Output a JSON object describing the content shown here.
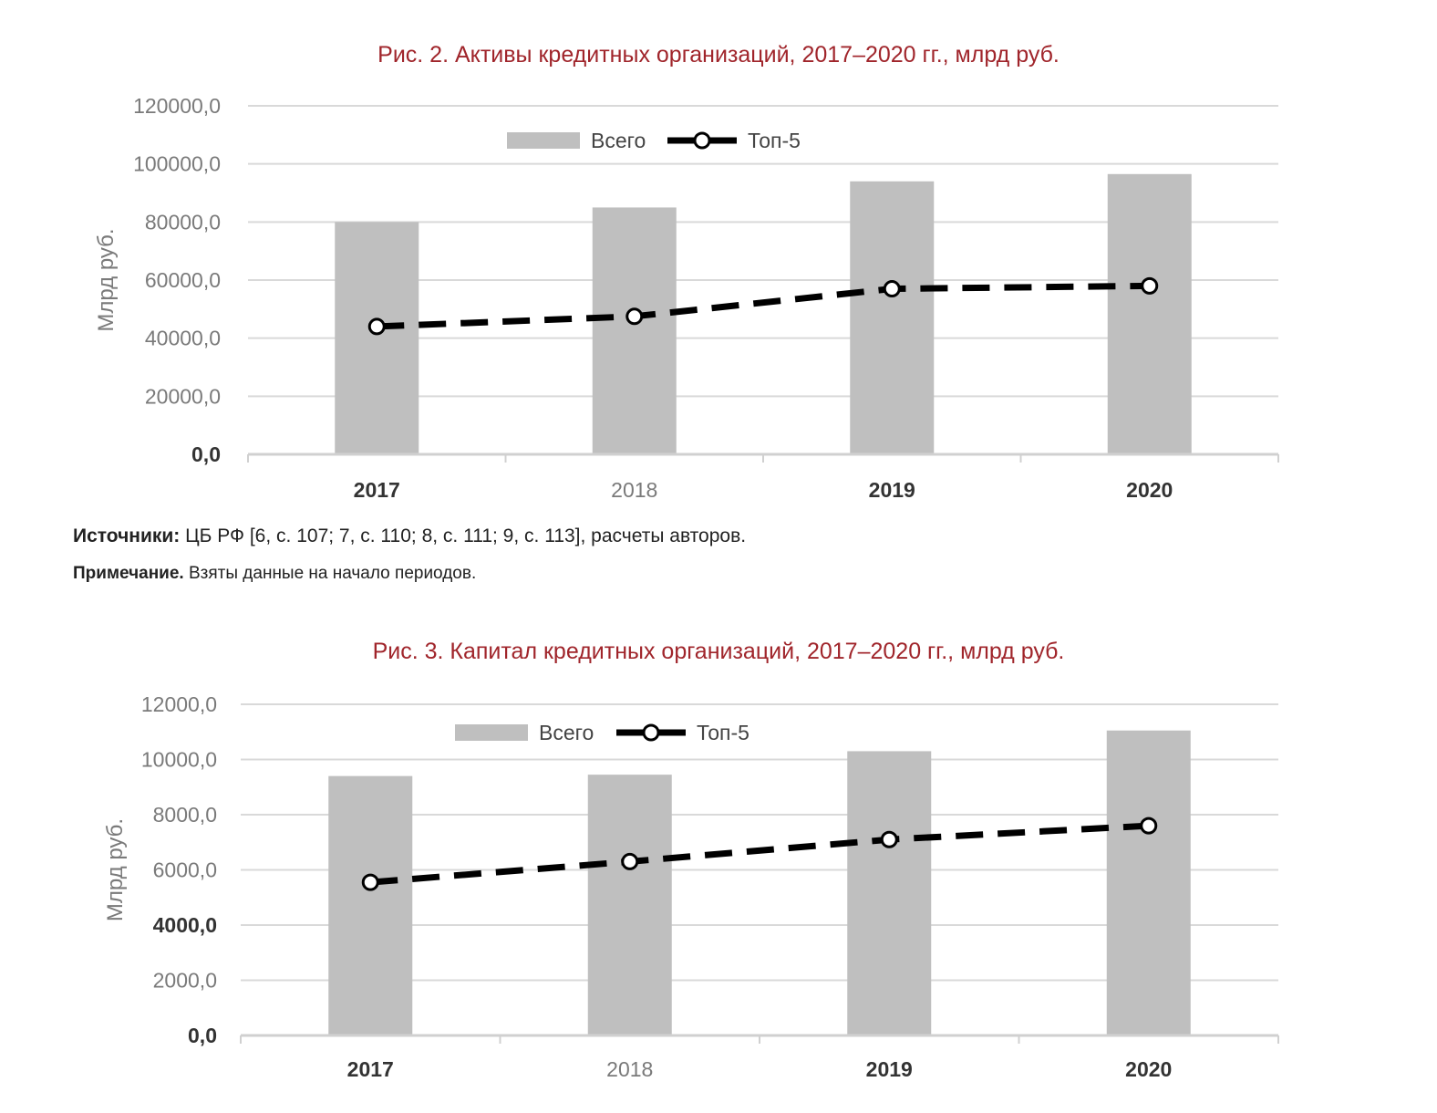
{
  "source_note": {
    "label": "Источники:",
    "text": " ЦБ РФ [6, с. 107; 7, с. 110; 8, с. 111; 9, с. 113], расчеты авторов."
  },
  "remark_note": {
    "label": "Примечание.",
    "text": " Взяты данные на начало периодов."
  },
  "colors": {
    "title": "#a0252b",
    "bars": "#bfbfbf",
    "line": "#000000",
    "grid": "#d9d9d9"
  },
  "chart_data": [
    {
      "type": "bar",
      "title": "Рис. 2. Активы кредитных организаций, 2017–2020 гг., млрд руб.",
      "ylabel": "Млрд руб.",
      "xlabel": "",
      "categories": [
        "2017",
        "2018",
        "2019",
        "2020"
      ],
      "yticks": [
        "0,0",
        "20000,0",
        "40000,0",
        "60000,0",
        "80000,0",
        "100000,0",
        "120000,0"
      ],
      "ylim": [
        0,
        120000
      ],
      "legend_position": "top-center",
      "grid": true,
      "series": [
        {
          "name": "Всего",
          "type": "bar",
          "values": [
            80000,
            85000,
            94000,
            96500
          ]
        },
        {
          "name": "Топ-5",
          "type": "line",
          "style": "dashed-with-circle-markers",
          "values": [
            44000,
            47500,
            57000,
            58000
          ]
        }
      ]
    },
    {
      "type": "bar",
      "title": "Рис. 3. Капитал кредитных организаций, 2017–2020 гг., млрд руб.",
      "ylabel": "Млрд руб.",
      "xlabel": "",
      "categories": [
        "2017",
        "2018",
        "2019",
        "2020"
      ],
      "yticks": [
        "0,0",
        "2000,0",
        "4000,0",
        "6000,0",
        "8000,0",
        "10000,0",
        "12000,0"
      ],
      "ylim": [
        0,
        12000
      ],
      "legend_position": "top-center",
      "grid": true,
      "series": [
        {
          "name": "Всего",
          "type": "bar",
          "values": [
            9400,
            9450,
            10300,
            11050
          ]
        },
        {
          "name": "Топ-5",
          "type": "line",
          "style": "dashed-with-circle-markers",
          "values": [
            5550,
            6300,
            7100,
            7600
          ]
        }
      ]
    }
  ]
}
